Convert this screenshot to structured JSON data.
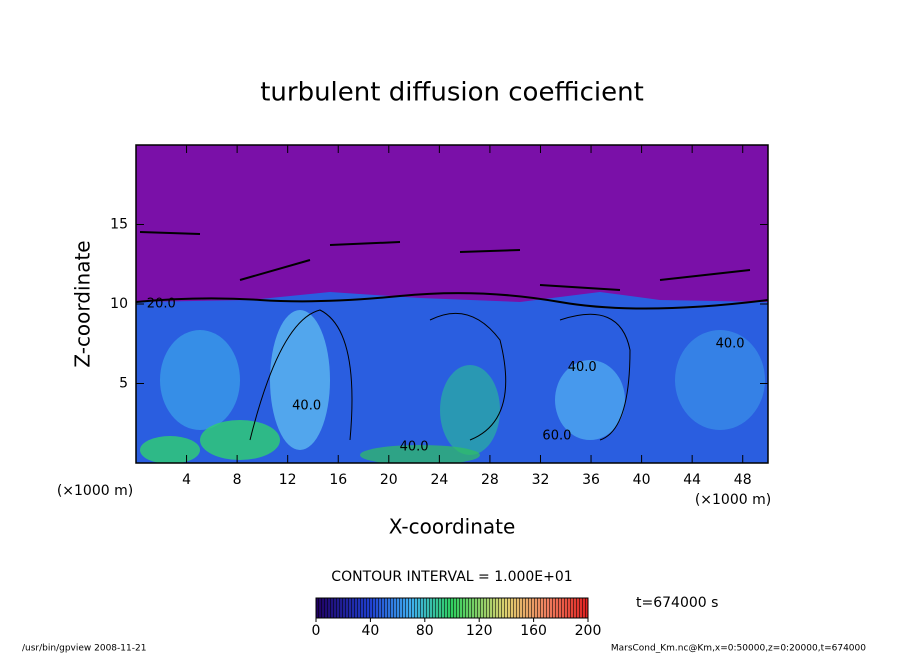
{
  "chart_data": {
    "type": "contour",
    "title": "turbulent diffusion coefficient",
    "xlabel": "X-coordinate",
    "ylabel": "Z-coordinate",
    "x_unit": "(×1000 m)",
    "y_unit": "(×1000 m)",
    "xlim": [
      0,
      50
    ],
    "xticks": [
      4,
      8,
      12,
      16,
      20,
      24,
      28,
      32,
      36,
      40,
      44,
      48
    ],
    "ylim": [
      0,
      20
    ],
    "yticks": [
      5,
      10,
      15
    ],
    "contour_labels": [
      {
        "text": "20.0",
        "x": 2,
        "y": 10
      },
      {
        "text": "40.0",
        "x": 13.5,
        "y": 3.6
      },
      {
        "text": "40.0",
        "x": 22,
        "y": 1
      },
      {
        "text": "40.0",
        "x": 35.3,
        "y": 6
      },
      {
        "text": "60.0",
        "x": 33.3,
        "y": 1.7
      },
      {
        "text": "40.0",
        "x": 47,
        "y": 7.5
      }
    ],
    "contour_interval": "CONTOUR INTERVAL = 1.000E+01",
    "colorbar": {
      "clim": [
        0,
        200
      ],
      "ticks": [
        0,
        40,
        80,
        120,
        160,
        200
      ]
    },
    "time_label": "t=674000 s",
    "footer_left": "/usr/bin/gpview  2008-11-21",
    "footer_right": "MarsCond_Km.nc@Km,x=0:50000,z=0:20000,t=674000"
  }
}
